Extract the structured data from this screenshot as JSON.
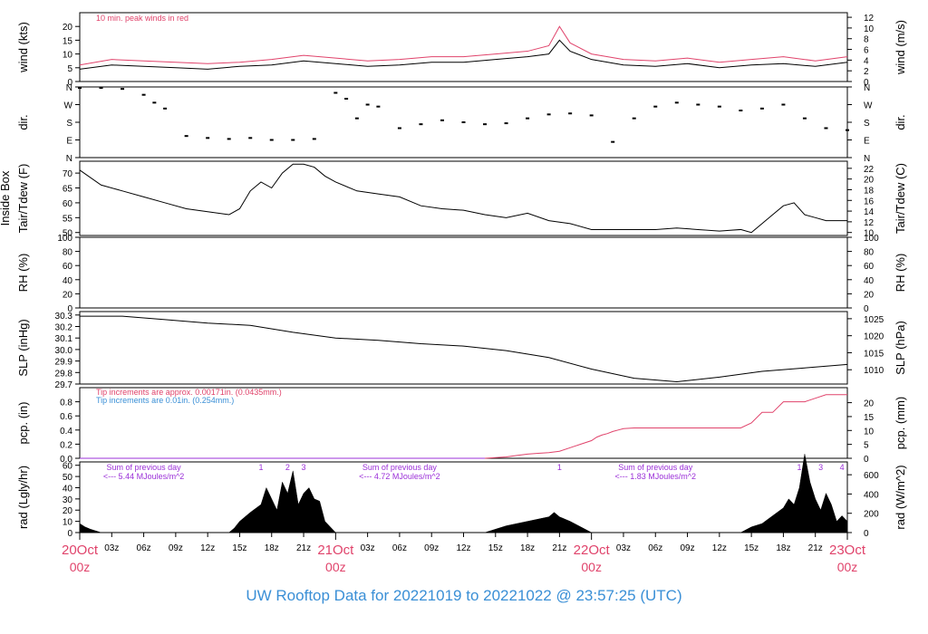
{
  "title": "UW Rooftop Data for 20221019  to  20221022 @ 23:57:25  (UTC)",
  "colors": {
    "red": "#e0436b",
    "blue": "#3a8fd6",
    "purple": "#9b30d8",
    "black": "#000000"
  },
  "time_axis": {
    "hours_total": 72,
    "minor_ticks": [
      "03z",
      "06z",
      "09z",
      "12z",
      "15z",
      "18z",
      "21z"
    ],
    "day_labels": [
      {
        "hour": 0,
        "top": "20Oct",
        "bottom": "00z"
      },
      {
        "hour": 24,
        "top": "21Oct",
        "bottom": "00z"
      },
      {
        "hour": 48,
        "top": "22Oct",
        "bottom": "00z"
      },
      {
        "hour": 72,
        "top": "23Oct",
        "bottom": "00z"
      }
    ]
  },
  "chart_data": [
    {
      "id": "wind",
      "type": "line",
      "ylabel_left": "wind (kts)",
      "ylabel_right": "wind (m/s)",
      "ylim": [
        0,
        25
      ],
      "yticks_left": [
        "0",
        "5",
        "10",
        "15",
        "20"
      ],
      "ylim_right": [
        0,
        12.86
      ],
      "yticks_right": [
        "0",
        "2",
        "4",
        "6",
        "8",
        "10",
        "12"
      ],
      "annotation": "10 min. peak winds in red",
      "series": [
        {
          "color": "#000000",
          "x": [
            0,
            3,
            6,
            9,
            12,
            15,
            18,
            21,
            24,
            27,
            30,
            33,
            36,
            39,
            42,
            44,
            45,
            46,
            48,
            51,
            54,
            57,
            60,
            63,
            66,
            69,
            72
          ],
          "y": [
            4.5,
            6,
            5.5,
            5,
            4.5,
            5.5,
            6,
            7.5,
            6.5,
            5.5,
            6,
            7,
            7,
            8,
            9,
            10,
            15,
            11,
            8,
            6,
            5.5,
            6.5,
            5,
            6,
            6.5,
            5.5,
            7
          ]
        },
        {
          "color": "#e0436b",
          "x": [
            0,
            3,
            6,
            9,
            12,
            15,
            18,
            21,
            24,
            27,
            30,
            33,
            36,
            39,
            42,
            44,
            45,
            46,
            48,
            51,
            54,
            57,
            60,
            63,
            66,
            69,
            72
          ],
          "y": [
            6,
            8,
            7.5,
            7,
            6.5,
            7,
            8,
            9.5,
            8.5,
            7.5,
            8,
            9,
            9,
            10,
            11,
            13,
            20,
            14,
            10,
            8,
            7.5,
            8.5,
            7,
            8,
            9,
            7.5,
            9
          ]
        }
      ]
    },
    {
      "id": "dir",
      "type": "scatter",
      "ylabel_left": "dir.",
      "ylabel_right": "dir.",
      "ylim": [
        0,
        360
      ],
      "yticks_left": [
        "N",
        "E",
        "S",
        "W",
        "N"
      ],
      "yticks_right": [
        "N",
        "E",
        "S",
        "W",
        "N"
      ],
      "series": [
        {
          "color": "#000000",
          "x": [
            0,
            2,
            4,
            6,
            7,
            8,
            10,
            12,
            14,
            16,
            18,
            20,
            22,
            24,
            25,
            26,
            27,
            28,
            30,
            32,
            34,
            36,
            38,
            40,
            42,
            44,
            46,
            48,
            50,
            52,
            54,
            56,
            58,
            60,
            62,
            64,
            66,
            68,
            70,
            72
          ],
          "y": [
            355,
            355,
            350,
            320,
            280,
            250,
            110,
            100,
            95,
            100,
            90,
            90,
            95,
            330,
            300,
            200,
            270,
            260,
            150,
            170,
            190,
            180,
            170,
            175,
            200,
            220,
            225,
            215,
            80,
            200,
            260,
            280,
            270,
            260,
            240,
            250,
            270,
            200,
            150,
            140
          ]
        }
      ]
    },
    {
      "id": "temp",
      "type": "line",
      "ylabel_left": "Tair/Tdew (F)",
      "ylabel_left2": "Inside Box",
      "ylabel_right": "Tair/Tdew (C)",
      "ylim": [
        49,
        74
      ],
      "yticks_left": [
        "50",
        "55",
        "60",
        "65",
        "70"
      ],
      "ylim_right": [
        9.44,
        23.33
      ],
      "yticks_right": [
        "10",
        "12",
        "14",
        "16",
        "18",
        "20",
        "22"
      ],
      "series": [
        {
          "color": "#000000",
          "x": [
            0,
            2,
            4,
            6,
            8,
            10,
            12,
            14,
            15,
            16,
            17,
            18,
            19,
            20,
            21,
            22,
            23,
            24,
            26,
            28,
            30,
            32,
            34,
            36,
            38,
            40,
            42,
            44,
            46,
            48,
            50,
            52,
            54,
            56,
            58,
            60,
            62,
            63,
            64,
            65,
            66,
            67,
            68,
            69,
            70,
            72
          ],
          "y": [
            71,
            66,
            64,
            62,
            60,
            58,
            57,
            56,
            58,
            64,
            67,
            65,
            70,
            73,
            73,
            72,
            69,
            67,
            64,
            63,
            62,
            59,
            58,
            57.5,
            56,
            55,
            56.5,
            54,
            53,
            51,
            51,
            51,
            51,
            51.5,
            51,
            50.5,
            51,
            50,
            53,
            56,
            59,
            60,
            56,
            55,
            54,
            54
          ]
        }
      ]
    },
    {
      "id": "rh",
      "type": "line",
      "ylabel_left": "RH (%)",
      "ylabel_right": "RH (%)",
      "ylim": [
        0,
        100
      ],
      "yticks_left": [
        "0",
        "20",
        "40",
        "60",
        "80",
        "100"
      ],
      "yticks_right": [
        "0",
        "20",
        "40",
        "60",
        "80",
        "100"
      ],
      "series": []
    },
    {
      "id": "slp",
      "type": "line",
      "ylabel_left": "SLP (inHg)",
      "ylabel_right": "SLP (hPa)",
      "ylim": [
        29.7,
        30.33
      ],
      "yticks_left": [
        "29.7",
        "29.8",
        "29.9",
        "30.0",
        "30.1",
        "30.2",
        "30.3"
      ],
      "ylim_right": [
        1005.8,
        1027.1
      ],
      "yticks_right": [
        "1010",
        "1015",
        "1020",
        "1025"
      ],
      "series": [
        {
          "color": "#000000",
          "x": [
            0,
            4,
            8,
            12,
            16,
            20,
            24,
            28,
            32,
            36,
            40,
            44,
            48,
            52,
            56,
            60,
            64,
            68,
            72
          ],
          "y": [
            30.29,
            30.29,
            30.26,
            30.23,
            30.21,
            30.15,
            30.1,
            30.08,
            30.05,
            30.03,
            29.99,
            29.93,
            29.83,
            29.75,
            29.72,
            29.76,
            29.81,
            29.84,
            29.87
          ]
        }
      ]
    },
    {
      "id": "pcp",
      "type": "line",
      "ylabel_left": "pcp. (in)",
      "ylabel_right": "pcp. (mm)",
      "ylim": [
        0,
        1.0
      ],
      "yticks_left": [
        "0.0",
        "0.2",
        "0.4",
        "0.6",
        "0.8"
      ],
      "ylim_right": [
        0,
        25.4
      ],
      "yticks_right": [
        "0",
        "5",
        "10",
        "15",
        "20"
      ],
      "notes": [
        "Tip increments are approx. 0.00171in. (0.0435mm.)",
        "Tip increments are 0.01in. (0.254mm.)"
      ],
      "series": [
        {
          "color": "#9b30d8",
          "x": [
            0,
            38
          ],
          "y": [
            0,
            0
          ]
        },
        {
          "color": "#e0436b",
          "x": [
            38,
            40,
            41,
            42,
            43,
            44,
            45,
            46,
            47,
            48,
            48.5,
            49,
            49.5,
            50,
            50.5,
            51,
            52,
            53,
            54,
            55,
            56,
            57,
            58,
            59,
            60,
            61,
            62,
            63,
            64,
            65,
            66,
            66.5,
            67,
            68,
            69,
            70,
            71,
            72
          ],
          "y": [
            0,
            0.02,
            0.04,
            0.06,
            0.07,
            0.08,
            0.1,
            0.15,
            0.2,
            0.25,
            0.3,
            0.33,
            0.35,
            0.38,
            0.4,
            0.42,
            0.43,
            0.43,
            0.43,
            0.43,
            0.43,
            0.43,
            0.43,
            0.43,
            0.43,
            0.43,
            0.43,
            0.5,
            0.65,
            0.65,
            0.8,
            0.8,
            0.8,
            0.8,
            0.85,
            0.9,
            0.9,
            0.9
          ]
        }
      ]
    },
    {
      "id": "rad",
      "type": "area",
      "ylabel_left": "rad (Lgly/hr)",
      "ylabel_right": "rad (W/m^2)",
      "ylim": [
        0,
        63
      ],
      "yticks_left": [
        "0",
        "10",
        "20",
        "30",
        "40",
        "50",
        "60"
      ],
      "ylim_right": [
        0,
        733
      ],
      "yticks_right": [
        "0",
        "200",
        "400",
        "600"
      ],
      "day_notes": [
        {
          "hour": 6,
          "line1": "Sum of previous day",
          "line2": "<--- 5.44 MJoules/m^2"
        },
        {
          "hour": 30,
          "line1": "Sum of previous day",
          "line2": "<--- 4.72 MJoules/m^2"
        },
        {
          "hour": 54,
          "line1": "Sum of previous day",
          "line2": "<--- 1.83 MJoules/m^2"
        }
      ],
      "markers": [
        {
          "hour": 17,
          "label": "1"
        },
        {
          "hour": 19.5,
          "label": "2"
        },
        {
          "hour": 21,
          "label": "3"
        },
        {
          "hour": 45,
          "label": "1"
        },
        {
          "hour": 67.5,
          "label": "1"
        },
        {
          "hour": 69.5,
          "label": "3"
        },
        {
          "hour": 71.5,
          "label": "4"
        }
      ],
      "series": [
        {
          "color": "#000000",
          "x": [
            0,
            0.5,
            1,
            2,
            14,
            14.5,
            15,
            16,
            17,
            17.5,
            18,
            18.5,
            19,
            19.5,
            20,
            20.5,
            21,
            21.5,
            22,
            22.5,
            23,
            23.5,
            24,
            38,
            39,
            40,
            41,
            42,
            43,
            44,
            44.5,
            45,
            46,
            47,
            48,
            62,
            63,
            64,
            65,
            66,
            66.5,
            67,
            67.5,
            68,
            68.5,
            69,
            69.5,
            70,
            70.5,
            71,
            71.5,
            72
          ],
          "y": [
            8,
            5,
            3,
            0,
            0,
            4,
            10,
            18,
            25,
            40,
            30,
            20,
            45,
            35,
            55,
            25,
            35,
            40,
            30,
            28,
            10,
            5,
            0,
            0,
            3,
            6,
            8,
            10,
            12,
            14,
            18,
            14,
            10,
            5,
            0,
            0,
            5,
            8,
            15,
            22,
            30,
            25,
            40,
            70,
            45,
            30,
            20,
            35,
            25,
            10,
            15,
            10
          ]
        }
      ]
    }
  ]
}
